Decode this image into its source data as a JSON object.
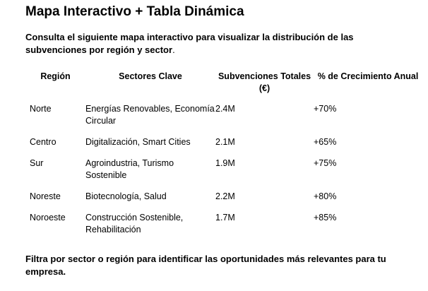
{
  "title": "Mapa Interactivo + Tabla Dinámica",
  "intro": {
    "bold": " Consulta el siguiente mapa interactivo para visualizar la distribución de las subvenciones por región y sector",
    "tail": "."
  },
  "table": {
    "headers": [
      "Región",
      "Sectores Clave",
      "Subvenciones Totales (€)",
      "% de Crecimiento Anual"
    ],
    "rows": [
      [
        "Norte",
        "Energías Renovables, Economía Circular",
        "2.4M",
        "+70%"
      ],
      [
        "Centro",
        "Digitalización, Smart Cities",
        "2.1M",
        "+65%"
      ],
      [
        "Sur",
        "Agroindustria, Turismo Sostenible",
        "1.9M",
        "+75%"
      ],
      [
        "Noreste",
        "Biotecnología, Salud",
        "2.2M",
        "+80%"
      ],
      [
        "Noroeste",
        "Construcción Sostenible, Rehabilitación",
        "1.7M",
        "+85%"
      ]
    ]
  },
  "outro": " Filtra por sector o región para identificar las oportunidades más relevantes para tu empresa."
}
